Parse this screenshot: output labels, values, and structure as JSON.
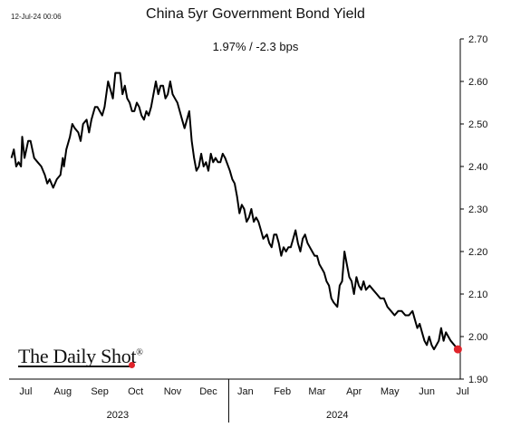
{
  "header": {
    "timestamp": "12-Jul-24 00:06",
    "title": "China 5yr Government Bond Yield",
    "subtitle": "1.97%  /  -2.3 bps"
  },
  "brand": {
    "logo_text": "The Daily Shot",
    "registered_mark": "®",
    "dot_color": "#e0242b"
  },
  "colors": {
    "line": "#000000",
    "last_point": "#e0242b",
    "axis": "#000000"
  },
  "chart_data": {
    "type": "line",
    "title": "China 5yr Government Bond Yield",
    "subtitle": "1.97%  /  -2.3 bps",
    "xlabel": "",
    "ylabel": "",
    "x_range": [
      "2023-07-01",
      "2024-07-13"
    ],
    "ylim": [
      1.9,
      2.7
    ],
    "y_ticks": [
      1.9,
      2.0,
      2.1,
      2.2,
      2.3,
      2.4,
      2.5,
      2.6,
      2.7
    ],
    "y_axis_position": "right",
    "grid": false,
    "legend": "none",
    "month_ticks": [
      {
        "label": "Jul",
        "date": "2023-07-15"
      },
      {
        "label": "Aug",
        "date": "2023-08-15"
      },
      {
        "label": "Sep",
        "date": "2023-09-15"
      },
      {
        "label": "Oct",
        "date": "2023-10-15"
      },
      {
        "label": "Nov",
        "date": "2023-11-15"
      },
      {
        "label": "Dec",
        "date": "2023-12-15"
      },
      {
        "label": "Jan",
        "date": "2024-01-15"
      },
      {
        "label": "Feb",
        "date": "2024-02-15"
      },
      {
        "label": "Mar",
        "date": "2024-03-15"
      },
      {
        "label": "Apr",
        "date": "2024-04-15"
      },
      {
        "label": "May",
        "date": "2024-05-15"
      },
      {
        "label": "Jun",
        "date": "2024-06-15"
      },
      {
        "label": "Jul",
        "date": "2024-07-15"
      }
    ],
    "year_labels": [
      {
        "label": "2023",
        "date": "2023-09-30"
      },
      {
        "label": "2024",
        "date": "2024-04-01"
      }
    ],
    "year_divider": "2024-01-01",
    "series": [
      {
        "name": "China 5yr Government Bond Yield",
        "points": [
          [
            "2023-07-03",
            2.42
          ],
          [
            "2023-07-05",
            2.44
          ],
          [
            "2023-07-07",
            2.4
          ],
          [
            "2023-07-09",
            2.41
          ],
          [
            "2023-07-11",
            2.4
          ],
          [
            "2023-07-12",
            2.47
          ],
          [
            "2023-07-14",
            2.42
          ],
          [
            "2023-07-17",
            2.46
          ],
          [
            "2023-07-19",
            2.46
          ],
          [
            "2023-07-22",
            2.42
          ],
          [
            "2023-07-25",
            2.41
          ],
          [
            "2023-07-28",
            2.4
          ],
          [
            "2023-07-31",
            2.38
          ],
          [
            "2023-08-02",
            2.36
          ],
          [
            "2023-08-04",
            2.37
          ],
          [
            "2023-08-07",
            2.35
          ],
          [
            "2023-08-10",
            2.37
          ],
          [
            "2023-08-13",
            2.38
          ],
          [
            "2023-08-15",
            2.42
          ],
          [
            "2023-08-16",
            2.4
          ],
          [
            "2023-08-18",
            2.44
          ],
          [
            "2023-08-21",
            2.47
          ],
          [
            "2023-08-23",
            2.5
          ],
          [
            "2023-08-25",
            2.49
          ],
          [
            "2023-08-28",
            2.48
          ],
          [
            "2023-08-30",
            2.46
          ],
          [
            "2023-09-01",
            2.5
          ],
          [
            "2023-09-04",
            2.51
          ],
          [
            "2023-09-06",
            2.48
          ],
          [
            "2023-09-08",
            2.51
          ],
          [
            "2023-09-11",
            2.54
          ],
          [
            "2023-09-13",
            2.54
          ],
          [
            "2023-09-15",
            2.53
          ],
          [
            "2023-09-17",
            2.52
          ],
          [
            "2023-09-19",
            2.54
          ],
          [
            "2023-09-21",
            2.58
          ],
          [
            "2023-09-22",
            2.6
          ],
          [
            "2023-09-24",
            2.58
          ],
          [
            "2023-09-26",
            2.56
          ],
          [
            "2023-09-28",
            2.62
          ],
          [
            "2023-10-02",
            2.62
          ],
          [
            "2023-10-04",
            2.57
          ],
          [
            "2023-10-06",
            2.59
          ],
          [
            "2023-10-08",
            2.56
          ],
          [
            "2023-10-10",
            2.55
          ],
          [
            "2023-10-12",
            2.53
          ],
          [
            "2023-10-14",
            2.53
          ],
          [
            "2023-10-16",
            2.55
          ],
          [
            "2023-10-18",
            2.54
          ],
          [
            "2023-10-20",
            2.52
          ],
          [
            "2023-10-22",
            2.51
          ],
          [
            "2023-10-24",
            2.53
          ],
          [
            "2023-10-26",
            2.52
          ],
          [
            "2023-10-28",
            2.54
          ],
          [
            "2023-10-30",
            2.57
          ],
          [
            "2023-11-01",
            2.6
          ],
          [
            "2023-11-03",
            2.57
          ],
          [
            "2023-11-05",
            2.59
          ],
          [
            "2023-11-07",
            2.59
          ],
          [
            "2023-11-09",
            2.56
          ],
          [
            "2023-11-11",
            2.57
          ],
          [
            "2023-11-13",
            2.6
          ],
          [
            "2023-11-15",
            2.57
          ],
          [
            "2023-11-17",
            2.56
          ],
          [
            "2023-11-19",
            2.55
          ],
          [
            "2023-11-21",
            2.53
          ],
          [
            "2023-11-23",
            2.51
          ],
          [
            "2023-11-25",
            2.49
          ],
          [
            "2023-11-27",
            2.51
          ],
          [
            "2023-11-29",
            2.53
          ],
          [
            "2023-12-01",
            2.46
          ],
          [
            "2023-12-03",
            2.42
          ],
          [
            "2023-12-05",
            2.39
          ],
          [
            "2023-12-07",
            2.4
          ],
          [
            "2023-12-09",
            2.43
          ],
          [
            "2023-12-11",
            2.4
          ],
          [
            "2023-12-13",
            2.41
          ],
          [
            "2023-12-15",
            2.39
          ],
          [
            "2023-12-17",
            2.43
          ],
          [
            "2023-12-19",
            2.41
          ],
          [
            "2023-12-21",
            2.42
          ],
          [
            "2023-12-23",
            2.41
          ],
          [
            "2023-12-25",
            2.41
          ],
          [
            "2023-12-27",
            2.43
          ],
          [
            "2023-12-29",
            2.42
          ],
          [
            "2024-01-02",
            2.39
          ],
          [
            "2024-01-04",
            2.37
          ],
          [
            "2024-01-06",
            2.36
          ],
          [
            "2024-01-08",
            2.33
          ],
          [
            "2024-01-10",
            2.29
          ],
          [
            "2024-01-12",
            2.31
          ],
          [
            "2024-01-14",
            2.3
          ],
          [
            "2024-01-16",
            2.27
          ],
          [
            "2024-01-18",
            2.28
          ],
          [
            "2024-01-20",
            2.3
          ],
          [
            "2024-01-22",
            2.27
          ],
          [
            "2024-01-24",
            2.28
          ],
          [
            "2024-01-26",
            2.27
          ],
          [
            "2024-01-28",
            2.25
          ],
          [
            "2024-01-30",
            2.23
          ],
          [
            "2024-02-02",
            2.24
          ],
          [
            "2024-02-04",
            2.22
          ],
          [
            "2024-02-06",
            2.21
          ],
          [
            "2024-02-08",
            2.24
          ],
          [
            "2024-02-10",
            2.24
          ],
          [
            "2024-02-12",
            2.22
          ],
          [
            "2024-02-14",
            2.19
          ],
          [
            "2024-02-16",
            2.21
          ],
          [
            "2024-02-18",
            2.2
          ],
          [
            "2024-02-20",
            2.21
          ],
          [
            "2024-02-22",
            2.21
          ],
          [
            "2024-02-24",
            2.23
          ],
          [
            "2024-02-26",
            2.25
          ],
          [
            "2024-02-28",
            2.22
          ],
          [
            "2024-03-01",
            2.2
          ],
          [
            "2024-03-03",
            2.23
          ],
          [
            "2024-03-05",
            2.24
          ],
          [
            "2024-03-07",
            2.22
          ],
          [
            "2024-03-09",
            2.21
          ],
          [
            "2024-03-11",
            2.2
          ],
          [
            "2024-03-13",
            2.19
          ],
          [
            "2024-03-15",
            2.19
          ],
          [
            "2024-03-17",
            2.17
          ],
          [
            "2024-03-19",
            2.16
          ],
          [
            "2024-03-21",
            2.15
          ],
          [
            "2024-03-23",
            2.13
          ],
          [
            "2024-03-25",
            2.12
          ],
          [
            "2024-03-27",
            2.09
          ],
          [
            "2024-03-29",
            2.08
          ],
          [
            "2024-04-01",
            2.07
          ],
          [
            "2024-04-03",
            2.12
          ],
          [
            "2024-04-05",
            2.13
          ],
          [
            "2024-04-07",
            2.2
          ],
          [
            "2024-04-09",
            2.17
          ],
          [
            "2024-04-11",
            2.14
          ],
          [
            "2024-04-13",
            2.13
          ],
          [
            "2024-04-15",
            2.1
          ],
          [
            "2024-04-17",
            2.14
          ],
          [
            "2024-04-19",
            2.12
          ],
          [
            "2024-04-21",
            2.11
          ],
          [
            "2024-04-23",
            2.13
          ],
          [
            "2024-04-25",
            2.11
          ],
          [
            "2024-04-28",
            2.12
          ],
          [
            "2024-05-01",
            2.11
          ],
          [
            "2024-05-04",
            2.1
          ],
          [
            "2024-05-07",
            2.09
          ],
          [
            "2024-05-10",
            2.09
          ],
          [
            "2024-05-13",
            2.07
          ],
          [
            "2024-05-16",
            2.06
          ],
          [
            "2024-05-19",
            2.05
          ],
          [
            "2024-05-22",
            2.06
          ],
          [
            "2024-05-25",
            2.06
          ],
          [
            "2024-05-28",
            2.05
          ],
          [
            "2024-05-31",
            2.05
          ],
          [
            "2024-06-03",
            2.06
          ],
          [
            "2024-06-05",
            2.04
          ],
          [
            "2024-06-07",
            2.02
          ],
          [
            "2024-06-09",
            2.03
          ],
          [
            "2024-06-11",
            2.01
          ],
          [
            "2024-06-13",
            1.99
          ],
          [
            "2024-06-15",
            1.98
          ],
          [
            "2024-06-17",
            2.0
          ],
          [
            "2024-06-19",
            1.98
          ],
          [
            "2024-06-21",
            1.97
          ],
          [
            "2024-06-23",
            1.98
          ],
          [
            "2024-06-25",
            1.99
          ],
          [
            "2024-06-27",
            2.02
          ],
          [
            "2024-06-29",
            1.99
          ],
          [
            "2024-07-01",
            2.01
          ],
          [
            "2024-07-03",
            2.0
          ],
          [
            "2024-07-05",
            1.99
          ],
          [
            "2024-07-08",
            1.98
          ],
          [
            "2024-07-11",
            1.97
          ]
        ]
      }
    ],
    "last_value": 1.97,
    "change_bps": -2.3
  }
}
